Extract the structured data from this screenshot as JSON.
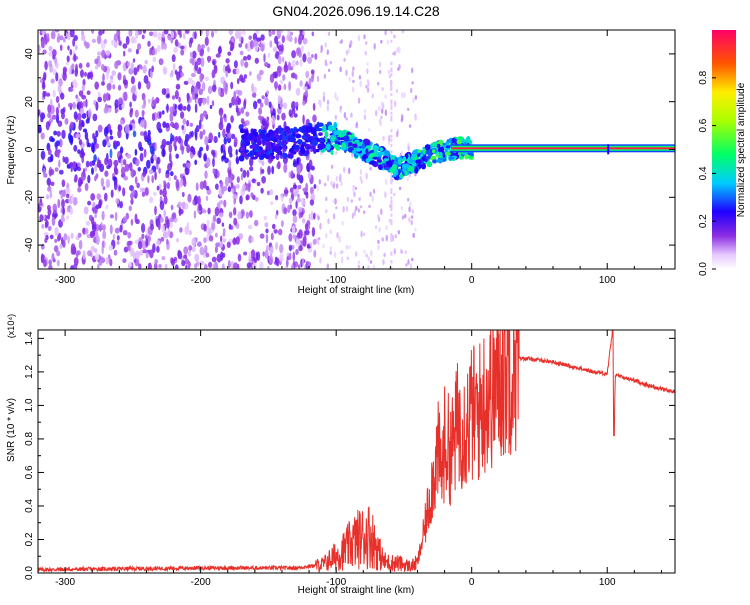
{
  "title": "GN04.2026.096.19.14.C28",
  "chart_data": [
    {
      "type": "heatmap",
      "name": "spectrogram",
      "xlabel": "Height of straight line (km)",
      "ylabel": "Frequency (Hz)",
      "xlim": [
        -320,
        150
      ],
      "ylim": [
        -50,
        50
      ],
      "xticks": [
        -300,
        -200,
        -100,
        0,
        100
      ],
      "xtick_labels": [
        "-300",
        "-200",
        "-100",
        "0",
        "100"
      ],
      "yticks": [
        -40,
        -20,
        0,
        20,
        40
      ],
      "ytick_labels": [
        "-40",
        "-20",
        "0",
        "20",
        "40"
      ],
      "colorbar": {
        "label": "Normalized spectral amplitude",
        "range": [
          0,
          1
        ],
        "ticks": [
          0.0,
          0.2,
          0.4,
          0.6,
          0.8
        ],
        "tick_labels": [
          "0.0",
          "0.2",
          "0.4",
          "0.6",
          "0.8"
        ]
      },
      "ridge": {
        "description": "dominant frequency vs height",
        "x": [
          -160,
          -130,
          -110,
          -95,
          -80,
          -65,
          -55,
          -45,
          -35,
          -25,
          -15,
          -5,
          0,
          150
        ],
        "y": [
          2,
          3,
          5,
          4,
          0,
          -4,
          -8,
          -6,
          -3,
          -1,
          0,
          1,
          0.5,
          0.5
        ]
      },
      "steady_line": {
        "x_start": -15,
        "x_end": 150,
        "frequency": 0.5,
        "amplitude": 1.0
      }
    },
    {
      "type": "line",
      "name": "snr",
      "xlabel": "Height of straight line (km)",
      "ylabel": "SNR (10 * v/v)",
      "scale_label": "(x10⁴)",
      "xlim": [
        -320,
        150
      ],
      "ylim": [
        0,
        1.45
      ],
      "xticks": [
        -300,
        -200,
        -100,
        0,
        100
      ],
      "xtick_labels": [
        "-300",
        "-200",
        "-100",
        "0",
        "100"
      ],
      "yticks": [
        0.0,
        0.2,
        0.4,
        0.6,
        0.8,
        1.0,
        1.2,
        1.4
      ],
      "ytick_labels": [
        "0.0",
        "0.2",
        "0.4",
        "0.6",
        "0.8",
        "1.0",
        "1.2",
        "1.4"
      ],
      "series": [
        {
          "name": "SNR",
          "color": "#e8302a",
          "x": [
            -320,
            -200,
            -130,
            -110,
            -95,
            -85,
            -75,
            -70,
            -65,
            -60,
            -55,
            -50,
            -45,
            -40,
            -35,
            -30,
            -25,
            -22,
            -20,
            -15,
            -10,
            -5,
            0,
            5,
            10,
            15,
            20,
            25,
            30,
            35,
            40,
            50,
            60,
            70,
            80,
            90,
            100,
            104,
            105,
            106,
            108,
            110,
            120,
            130,
            140,
            150
          ],
          "y": [
            0.02,
            0.03,
            0.03,
            0.05,
            0.13,
            0.2,
            0.23,
            0.15,
            0.07,
            0.06,
            0.06,
            0.05,
            0.04,
            0.06,
            0.25,
            0.5,
            0.72,
            0.6,
            0.78,
            0.72,
            0.9,
            0.88,
            0.95,
            0.95,
            1.05,
            1.1,
            1.15,
            1.22,
            1.27,
            1.28,
            1.28,
            1.27,
            1.26,
            1.24,
            1.22,
            1.2,
            1.19,
            1.45,
            0.82,
            1.18,
            1.18,
            1.17,
            1.15,
            1.12,
            1.1,
            1.08
          ]
        }
      ]
    }
  ]
}
